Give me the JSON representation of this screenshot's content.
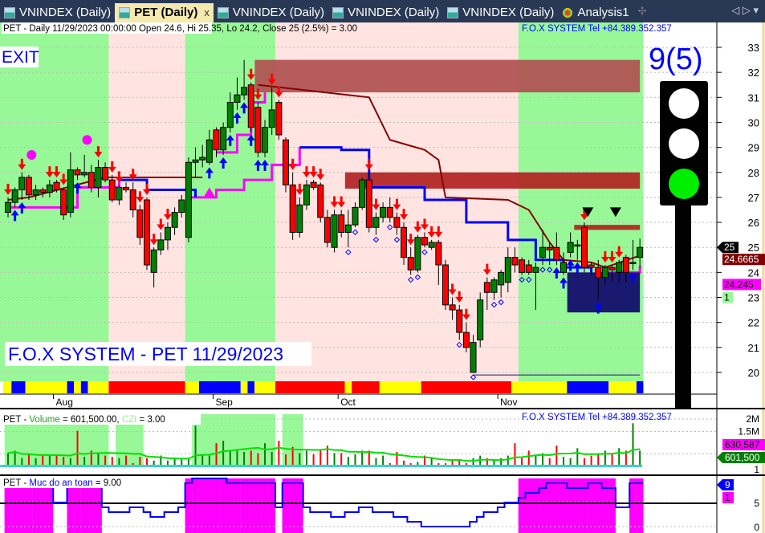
{
  "tabs": [
    {
      "label": "VNINDEX (Daily)",
      "active": false
    },
    {
      "label": "PET (Daily)",
      "active": true
    },
    {
      "label": "VNINDEX (Daily)",
      "active": false
    },
    {
      "label": "VNINDEX (Daily)",
      "active": false
    },
    {
      "label": "VNINDEX (Daily)",
      "active": false
    },
    {
      "label": "Analysis1",
      "active": false
    }
  ],
  "tab_close": "x",
  "tab_nav": "◁ ▷ ▾",
  "header": {
    "info": "PET - Daily 11/29/2023 00:00:00 Open 24.6, Hi 25.35, Lo 24.2, Close 25 (2.5%)  = 3.00",
    "brand": "F.O.X SYSTEM Tel +84.389.352.357"
  },
  "exit_label": "EXIT",
  "watermark": "F.O.X SYSTEM - PET 11/29/2023",
  "signal_count": "9(5)",
  "traffic_light": [
    "white",
    "white",
    "#00ee00"
  ],
  "price_axis": {
    "ticks": [
      33,
      32,
      31,
      30,
      29,
      28,
      27,
      26,
      25,
      24,
      23,
      22,
      21,
      20
    ],
    "range": [
      19.3,
      33.5
    ]
  },
  "price_badges": [
    {
      "text": "25",
      "bg": "#000000",
      "fg": "#ffffff"
    },
    {
      "text": "24.6665",
      "bg": "#800000",
      "fg": "#ffffff"
    },
    {
      "text": "24.245",
      "bg": "#ff00ff",
      "fg": "#000000"
    },
    {
      "text": "1",
      "bg": "#98f898",
      "fg": "#000000"
    }
  ],
  "months": [
    "Aug",
    "Sep",
    "Oct",
    "Nov"
  ],
  "month_index": [
    7,
    30,
    48,
    71
  ],
  "colors": {
    "green_zone": "#98f898",
    "pink_zone": "#ffe4e1",
    "up": "#008000",
    "down": "#ff0000",
    "resist": "#b05050",
    "navy": "#191970"
  },
  "zones": [
    [
      "green",
      0,
      14
    ],
    [
      "pink",
      15,
      25
    ],
    [
      "green",
      26,
      38
    ],
    [
      "pink",
      39,
      73
    ],
    [
      "green",
      74,
      91
    ]
  ],
  "candles": [
    [
      26.4,
      27.0,
      26.2,
      26.8
    ],
    [
      26.8,
      27.4,
      26.6,
      27.3
    ],
    [
      27.3,
      28.0,
      26.9,
      27.8
    ],
    [
      27.8,
      27.9,
      26.9,
      27.1
    ],
    [
      27.1,
      27.5,
      26.9,
      27.3
    ],
    [
      27.3,
      27.4,
      27.0,
      27.2
    ],
    [
      27.2,
      27.7,
      27.0,
      27.5
    ],
    [
      27.6,
      27.7,
      27.2,
      27.3
    ],
    [
      27.3,
      27.4,
      26.1,
      26.3
    ],
    [
      26.4,
      28.8,
      26.2,
      28.1
    ],
    [
      28.1,
      28.2,
      27.7,
      27.9
    ],
    [
      27.9,
      28.7,
      27.8,
      28.0
    ],
    [
      28.0,
      28.3,
      27.2,
      27.4
    ],
    [
      27.4,
      28.5,
      27.0,
      28.2
    ],
    [
      28.2,
      28.4,
      27.6,
      27.7
    ],
    [
      27.7,
      27.9,
      26.8,
      26.9
    ],
    [
      26.9,
      27.5,
      26.7,
      27.4
    ],
    [
      27.4,
      27.6,
      27.2,
      27.3
    ],
    [
      27.3,
      27.6,
      26.2,
      26.5
    ],
    [
      26.5,
      26.7,
      25.1,
      25.4
    ],
    [
      26.9,
      27.0,
      24.1,
      24.3
    ],
    [
      24.0,
      25.0,
      23.4,
      24.9
    ],
    [
      24.9,
      25.6,
      24.7,
      25.3
    ],
    [
      25.3,
      26.0,
      24.9,
      25.8
    ],
    [
      25.8,
      26.6,
      25.5,
      26.4
    ],
    [
      26.4,
      27.1,
      26.2,
      26.9
    ],
    [
      25.4,
      28.6,
      25.2,
      28.4
    ],
    [
      28.4,
      29.0,
      27.8,
      28.5
    ],
    [
      28.5,
      29.1,
      28.2,
      28.6
    ],
    [
      28.4,
      29.7,
      28.3,
      29.3
    ],
    [
      29.7,
      29.8,
      28.6,
      28.9
    ],
    [
      28.9,
      30.0,
      28.7,
      29.8
    ],
    [
      29.8,
      31.2,
      29.6,
      30.8
    ],
    [
      30.8,
      31.8,
      30.5,
      31.1
    ],
    [
      31.1,
      32.5,
      30.9,
      31.4
    ],
    [
      31.5,
      31.6,
      29.6,
      29.8
    ],
    [
      30.6,
      30.8,
      28.6,
      28.8
    ],
    [
      28.8,
      30.1,
      28.6,
      29.8
    ],
    [
      29.8,
      31.4,
      29.5,
      30.5
    ],
    [
      30.8,
      30.9,
      29.3,
      29.5
    ],
    [
      29.3,
      29.4,
      27.2,
      27.5
    ],
    [
      27.5,
      28.0,
      25.3,
      25.6
    ],
    [
      25.6,
      27.0,
      25.4,
      26.7
    ],
    [
      26.7,
      27.7,
      26.5,
      27.5
    ],
    [
      27.6,
      27.7,
      27.3,
      27.4
    ],
    [
      27.5,
      27.6,
      26.0,
      26.2
    ],
    [
      26.2,
      26.5,
      25.0,
      25.2
    ],
    [
      25.0,
      26.5,
      24.8,
      26.3
    ],
    [
      26.3,
      26.5,
      25.4,
      25.6
    ],
    [
      25.6,
      26.5,
      25.0,
      25.9
    ],
    [
      25.9,
      26.8,
      25.8,
      26.6
    ],
    [
      26.6,
      27.8,
      26.5,
      27.7
    ],
    [
      27.7,
      28.0,
      25.6,
      25.8
    ],
    [
      25.8,
      26.4,
      25.5,
      26.2
    ],
    [
      26.2,
      26.8,
      26.0,
      26.6
    ],
    [
      26.6,
      27.0,
      26.0,
      26.2
    ],
    [
      26.2,
      26.4,
      25.5,
      25.8
    ],
    [
      25.8,
      26.0,
      24.3,
      24.6
    ],
    [
      24.6,
      25.0,
      23.9,
      24.1
    ],
    [
      24.1,
      25.5,
      24.0,
      25.4
    ],
    [
      25.4,
      25.6,
      25.0,
      25.1
    ],
    [
      25.0,
      25.3,
      24.9,
      25.2
    ],
    [
      25.2,
      25.3,
      23.5,
      24.3
    ],
    [
      24.3,
      24.5,
      22.5,
      22.7
    ],
    [
      22.7,
      23.0,
      22.1,
      22.5
    ],
    [
      22.5,
      22.7,
      21.3,
      21.6
    ],
    [
      21.6,
      22.0,
      20.8,
      21.0
    ],
    [
      20.0,
      21.5,
      20.0,
      21.2
    ],
    [
      21.3,
      23.2,
      21.0,
      22.9
    ],
    [
      23.6,
      23.8,
      22.5,
      23.2
    ],
    [
      23.2,
      23.8,
      22.9,
      23.7
    ],
    [
      23.5,
      24.1,
      23.0,
      24.0
    ],
    [
      23.6,
      25.0,
      23.2,
      24.6
    ],
    [
      24.6,
      25.0,
      24.0,
      24.3
    ],
    [
      24.5,
      24.6,
      23.9,
      24.0
    ],
    [
      24.3,
      24.5,
      23.9,
      24.0
    ],
    [
      24.0,
      24.4,
      22.5,
      24.2
    ],
    [
      24.6,
      25.7,
      24.3,
      25.0
    ],
    [
      25.0,
      25.2,
      24.3,
      24.9
    ],
    [
      25.0,
      25.6,
      24.3,
      24.5
    ],
    [
      24.0,
      24.8,
      23.9,
      24.4
    ],
    [
      24.8,
      25.6,
      24.6,
      25.2
    ],
    [
      25.1,
      25.3,
      24.5,
      25.1
    ],
    [
      25.8,
      26.0,
      24.0,
      24.2
    ],
    [
      24.3,
      24.4,
      23.9,
      24.2
    ],
    [
      24.2,
      24.5,
      22.9,
      23.8
    ],
    [
      23.8,
      24.3,
      23.5,
      24.2
    ],
    [
      24.2,
      24.3,
      23.6,
      24.1
    ],
    [
      24.0,
      24.5,
      23.6,
      24.4
    ],
    [
      24.6,
      24.7,
      23.6,
      24.0
    ],
    [
      24.4,
      25.3,
      24.1,
      24.4
    ],
    [
      24.6,
      25.35,
      24.2,
      25.0
    ]
  ],
  "down_arrows": [
    0,
    2,
    6,
    7,
    8,
    13,
    15,
    16,
    18,
    19,
    20,
    21,
    22,
    23,
    35,
    36,
    38,
    39,
    41,
    42,
    43,
    44,
    45,
    47,
    48,
    52,
    53,
    56,
    57,
    58,
    59,
    60,
    61,
    62,
    64,
    65,
    66,
    69,
    83,
    86,
    87,
    88
  ],
  "up_arrows": [
    1,
    2,
    10,
    29,
    31,
    32,
    33,
    34,
    35,
    36,
    37,
    79,
    80,
    81,
    82,
    85,
    90
  ],
  "diamonds": [
    49,
    50,
    53,
    55,
    56,
    58,
    59,
    60,
    65,
    67,
    70,
    71,
    74,
    75,
    77,
    78
  ],
  "magenta_dots": [
    [
      2,
      28.7
    ],
    [
      10,
      29.3
    ]
  ],
  "lines": {
    "magenta": [
      [
        [
          0,
          26.6
        ],
        [
          10,
          27.4
        ],
        [
          16,
          27.7
        ]
      ],
      [
        [
          26,
          27.0
        ],
        [
          30,
          27.3
        ],
        [
          34,
          27.7
        ],
        [
          38,
          28.3
        ],
        [
          42,
          29.0
        ]
      ],
      [
        [
          30,
          28.8
        ],
        [
          33,
          29.5
        ],
        [
          35,
          30.8
        ],
        [
          37,
          31.2
        ]
      ],
      [
        [
          86,
          24.0
        ],
        [
          91,
          24.25
        ]
      ]
    ],
    "blue": [
      [
        [
          16,
          27.7
        ],
        [
          20,
          27.3
        ],
        [
          27,
          27.0
        ]
      ],
      [
        [
          42,
          29.0
        ],
        [
          48,
          28.9
        ],
        [
          52,
          27.4
        ],
        [
          60,
          26.9
        ],
        [
          66,
          26.0
        ],
        [
          72,
          25.3
        ],
        [
          76,
          24.5
        ],
        [
          80,
          24.2
        ],
        [
          84,
          23.9
        ],
        [
          86,
          24.0
        ]
      ]
    ],
    "darkred": [
      [
        [
          0,
          26.9
        ],
        [
          3,
          27.0
        ],
        [
          14,
          27.8
        ],
        [
          28,
          27.8
        ]
      ],
      [
        [
          36,
          31.5
        ],
        [
          52,
          31.0
        ],
        [
          55,
          29.3
        ],
        [
          60,
          28.9
        ],
        [
          62,
          28.5
        ],
        [
          63,
          27.0
        ],
        [
          72,
          26.9
        ],
        [
          75,
          26.5
        ],
        [
          78,
          25.2
        ],
        [
          80,
          24.5
        ],
        [
          84,
          24.4
        ],
        [
          86,
          24.2
        ],
        [
          91,
          24.67
        ]
      ]
    ]
  },
  "resistance_boxes": [
    [
      36,
      91,
      32.5,
      31.2
    ],
    [
      49,
      91,
      28.0,
      27.35
    ],
    [
      82,
      91,
      25.9,
      25.7
    ]
  ],
  "support_box": [
    81,
    91,
    24.0,
    22.4
  ],
  "trend_bar": [
    [
      "yellow",
      0,
      0
    ],
    [
      "blue",
      1,
      2
    ],
    [
      "yellow",
      3,
      8
    ],
    [
      "blue",
      9,
      9
    ],
    [
      "yellow",
      10,
      10
    ],
    [
      "blue",
      11,
      11
    ],
    [
      "yellow",
      12,
      14
    ],
    [
      "red",
      15,
      25
    ],
    [
      "yellow",
      26,
      27
    ],
    [
      "blue",
      28,
      33
    ],
    [
      "yellow",
      34,
      34
    ],
    [
      "blue",
      35,
      35
    ],
    [
      "yellow",
      36,
      38
    ],
    [
      "red",
      39,
      48
    ],
    [
      "yellow",
      49,
      49
    ],
    [
      "red",
      50,
      53
    ],
    [
      "yellow",
      54,
      59
    ],
    [
      "red",
      60,
      72
    ],
    [
      "yellow",
      73,
      80
    ],
    [
      "blue",
      81,
      86
    ],
    [
      "yellow",
      87,
      90
    ],
    [
      "blue",
      91,
      91
    ]
  ],
  "volume_panel": {
    "title_prefix": "PET - ",
    "vol_label": "Volume",
    "vol_value": " = 601,500.00, ",
    "czi_label": "CZI",
    "czi_value": " = 3.00",
    "brand": "F.O.X SYSTEM Tel +84.389.352.357",
    "ticks": [
      "2M",
      "1.5M",
      "1"
    ],
    "badges": [
      {
        "text": "630,587",
        "bg": "#ff00ff",
        "fg": "#000000"
      },
      {
        "text": "601,500",
        "bg": "#008000",
        "fg": "#ffffff"
      }
    ],
    "volumes_m": [
      0.5,
      0.6,
      0.3,
      0.45,
      0.3,
      0.4,
      0.4,
      0.4,
      0.35,
      0.3,
      1.4,
      0.35,
      0.6,
      0.5,
      0.4,
      0.35,
      0.3,
      0.4,
      0.1,
      0.35,
      0.3,
      0.2,
      0.4,
      0.2,
      0.3,
      0.25,
      0.3,
      1.6,
      0.4,
      0.4,
      0.9,
      1.0,
      0.6,
      0.6,
      0.55,
      0.6,
      0.5,
      0.9,
      0.55,
      1.0,
      0.45,
      0.75,
      0.5,
      0.6,
      0.45,
      0.65,
      0.8,
      0.5,
      0.5,
      0.35,
      0.45,
      0.6,
      0.6,
      0.3,
      0.4,
      0.1,
      0.55,
      0.2,
      0.1,
      0.15,
      0.4,
      0.3,
      0.1,
      0.1,
      0.2,
      0.2,
      0.1,
      0.3,
      0.4,
      0.3,
      0.2,
      0.3,
      0.4,
      0.9,
      0.3,
      0.6,
      0.4,
      0.5,
      0.3,
      0.8,
      0.35,
      0.3,
      0.7,
      0.3,
      0.4,
      0.5,
      0.6,
      0.5,
      0.7,
      0.6,
      1.7,
      0.6
    ],
    "green_zones": [
      [
        0,
        14
      ],
      [
        16,
        19
      ],
      [
        27,
        38
      ],
      [
        40,
        42
      ]
    ]
  },
  "safety_panel": {
    "title_prefix": "PET - ",
    "label": "Muc do an toan",
    "value": " = 9.00",
    "ticks": [
      "5",
      "0"
    ],
    "badges": [
      {
        "text": "9",
        "bg": "#0000ff",
        "fg": "#ffffff"
      },
      {
        "text": "1",
        "bg": "#ff00ff",
        "fg": "#000000"
      }
    ],
    "levels": [
      9,
      9,
      9,
      9,
      9,
      9,
      9,
      5,
      5,
      9,
      9,
      9,
      9,
      9,
      4,
      3,
      3,
      3,
      4,
      4,
      3,
      2,
      2,
      3,
      3,
      4,
      9,
      10,
      10,
      10,
      10,
      10,
      9,
      9,
      9,
      9,
      9,
      9,
      9,
      4,
      9,
      9,
      9,
      4,
      3,
      3,
      3,
      2,
      2,
      3,
      3,
      4,
      4,
      3,
      3,
      3,
      2,
      2,
      1,
      1,
      0,
      0,
      0,
      0,
      0,
      0,
      0,
      1,
      2,
      3,
      3,
      4,
      5,
      5,
      6,
      7,
      7,
      8,
      9,
      9,
      9,
      8,
      8,
      8,
      9,
      9,
      8,
      8,
      4,
      4,
      9,
      9
    ]
  }
}
